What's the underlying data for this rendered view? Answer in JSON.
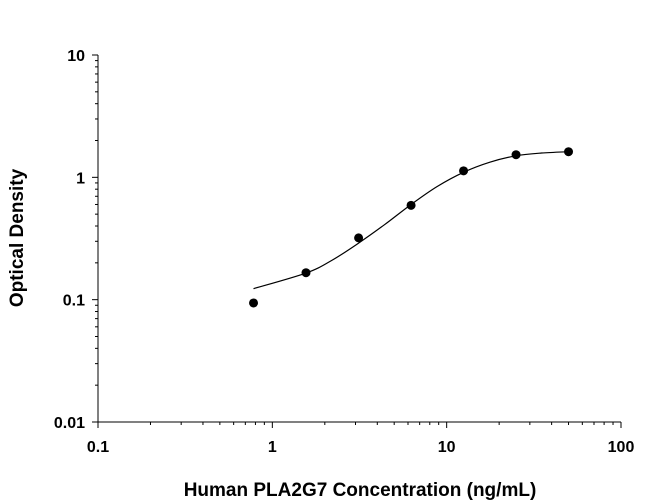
{
  "chart_data": {
    "type": "scatter",
    "title": "",
    "xlabel": "Human PLA2G7 Concentration (ng/mL)",
    "ylabel": "Optical Density",
    "x_scale": "log",
    "y_scale": "log",
    "xlim": [
      0.1,
      100
    ],
    "ylim": [
      0.01,
      10
    ],
    "x_ticks": [
      "0.1",
      "1",
      "10",
      "100"
    ],
    "y_ticks": [
      "0.01",
      "0.1",
      "1",
      "10"
    ],
    "grid": false,
    "legend": "none",
    "points": {
      "x": [
        0.78,
        1.56,
        3.125,
        6.25,
        12.5,
        25,
        50
      ],
      "y": [
        0.094,
        0.166,
        0.32,
        0.59,
        1.13,
        1.53,
        1.62
      ]
    },
    "fit_curve": {
      "x": [
        0.78,
        1.56,
        2.2,
        3.125,
        4.4,
        6.25,
        8.8,
        12.5,
        17.7,
        25,
        35,
        50
      ],
      "y": [
        0.123,
        0.165,
        0.21,
        0.29,
        0.41,
        0.6,
        0.84,
        1.1,
        1.33,
        1.5,
        1.58,
        1.62
      ]
    },
    "colors": {
      "points": "#000000",
      "line": "#000000"
    }
  }
}
